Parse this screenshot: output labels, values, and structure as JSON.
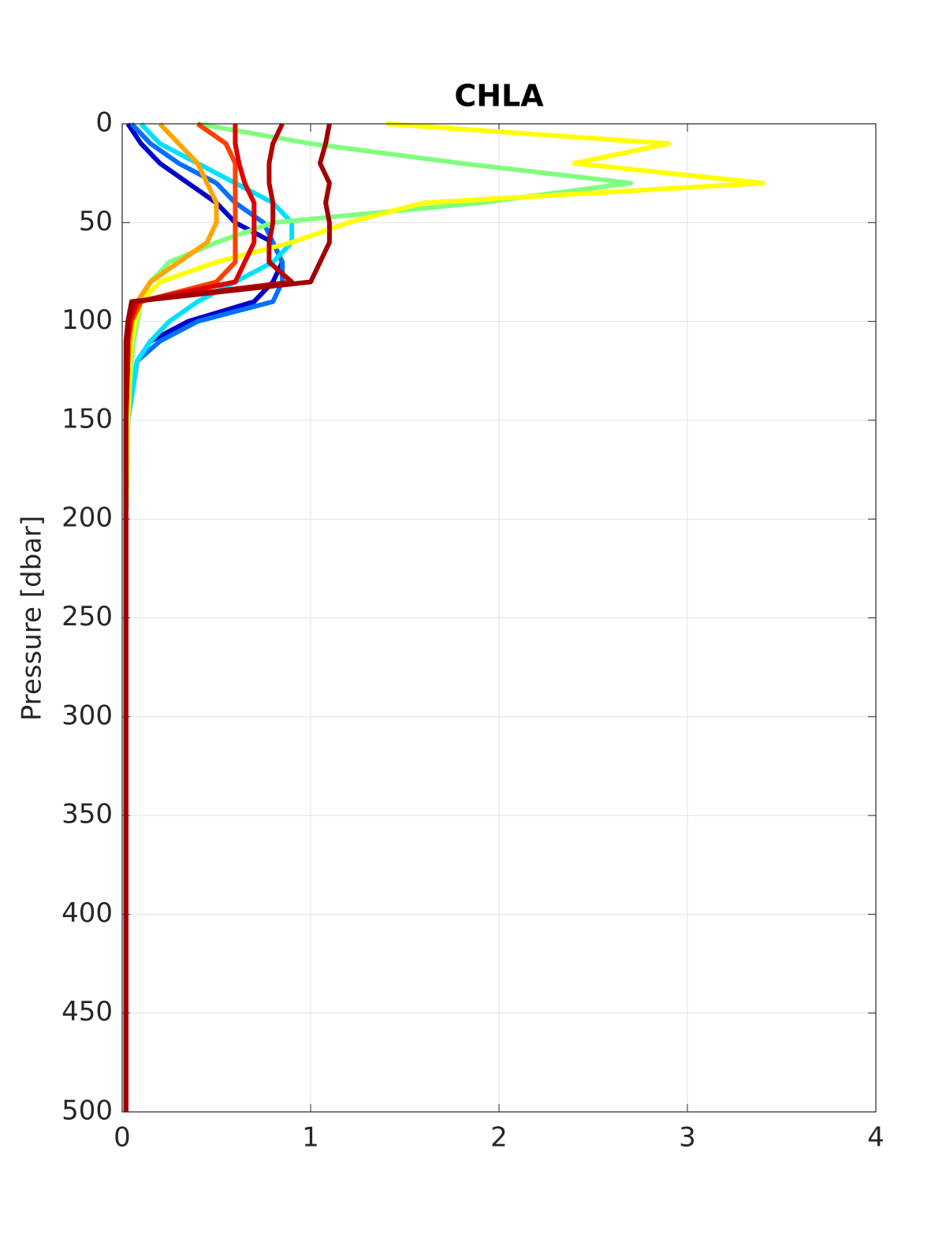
{
  "chart_data": {
    "type": "line",
    "title": "CHLA",
    "y_label": "Pressure [dbar]",
    "y": [
      0,
      10,
      20,
      30,
      40,
      50,
      60,
      70,
      80,
      90,
      100,
      110,
      120,
      150,
      200,
      300,
      400,
      500
    ],
    "y_reversed": true,
    "series": [
      {
        "color": "#0000c8",
        "values": [
          0.03,
          0.1,
          0.2,
          0.35,
          0.5,
          0.6,
          0.8,
          0.85,
          0.8,
          0.7,
          0.35,
          0.15,
          0.08,
          0.03,
          0.02,
          0.02,
          0.02,
          0.02
        ]
      },
      {
        "color": "#0070ff",
        "values": [
          0.05,
          0.15,
          0.3,
          0.5,
          0.6,
          0.75,
          0.8,
          0.85,
          0.85,
          0.8,
          0.4,
          0.2,
          0.08,
          0.03,
          0.02,
          0.02,
          0.02,
          0.02
        ]
      },
      {
        "color": "#00e0ff",
        "values": [
          0.1,
          0.2,
          0.4,
          0.6,
          0.8,
          0.9,
          0.9,
          0.8,
          0.6,
          0.4,
          0.25,
          0.15,
          0.08,
          0.03,
          0.02,
          0.02,
          0.02,
          0.02
        ]
      },
      {
        "color": "#80ff80",
        "values": [
          0.4,
          1.0,
          1.8,
          2.7,
          1.9,
          0.8,
          0.5,
          0.25,
          0.15,
          0.1,
          0.08,
          0.06,
          0.05,
          0.03,
          0.02,
          0.02,
          0.02,
          0.02
        ]
      },
      {
        "color": "#ffff00",
        "values": [
          1.4,
          2.9,
          2.4,
          3.4,
          1.6,
          1.2,
          0.9,
          0.5,
          0.2,
          0.1,
          0.07,
          0.05,
          0.04,
          0.03,
          0.02,
          0.02,
          0.02,
          0.02
        ]
      },
      {
        "color": "#ffa500",
        "values": [
          0.2,
          0.3,
          0.4,
          0.45,
          0.5,
          0.5,
          0.45,
          0.3,
          0.15,
          0.08,
          0.05,
          0.04,
          0.03,
          0.02,
          0.02,
          0.02,
          0.02,
          0.02
        ]
      },
      {
        "color": "#ff4000",
        "values": [
          0.4,
          0.55,
          0.6,
          0.6,
          0.6,
          0.6,
          0.6,
          0.6,
          0.5,
          0.1,
          0.05,
          0.03,
          0.03,
          0.02,
          0.02,
          0.02,
          0.02,
          0.02
        ]
      },
      {
        "color": "#e00000",
        "values": [
          0.6,
          0.6,
          0.62,
          0.65,
          0.7,
          0.7,
          0.7,
          0.65,
          0.6,
          0.08,
          0.04,
          0.03,
          0.03,
          0.02,
          0.02,
          0.02,
          0.02,
          0.02
        ]
      },
      {
        "color": "#b40000",
        "values": [
          0.85,
          0.8,
          0.78,
          0.78,
          0.8,
          0.8,
          0.78,
          0.78,
          0.9,
          0.06,
          0.03,
          0.03,
          0.02,
          0.02,
          0.02,
          0.02,
          0.02,
          0.02
        ]
      },
      {
        "color": "#a00000",
        "values": [
          1.1,
          1.08,
          1.05,
          1.1,
          1.08,
          1.1,
          1.1,
          1.05,
          1.0,
          0.05,
          0.03,
          0.02,
          0.02,
          0.02,
          0.02,
          0.02,
          0.02,
          0.02
        ]
      }
    ],
    "xlim": [
      0,
      4
    ],
    "xticks": [
      0,
      1,
      2,
      3,
      4
    ],
    "ylim": [
      0,
      500
    ],
    "yticks": [
      0,
      50,
      100,
      150,
      200,
      250,
      300,
      350,
      400,
      450,
      500
    ],
    "grid": true
  }
}
